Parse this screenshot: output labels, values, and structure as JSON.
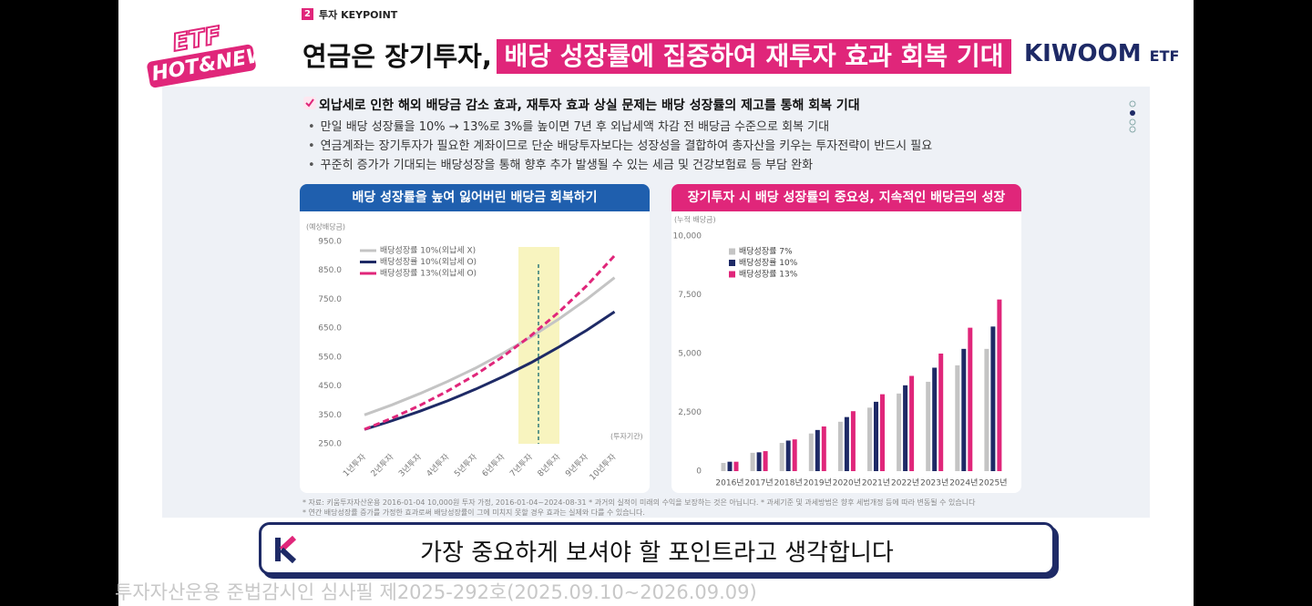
{
  "header": {
    "section_number": "2",
    "section_label": "투자 KEYPOINT",
    "badge_top": "ETF",
    "badge_bottom": "HOT&NEW",
    "title_plain": "연금은 장기투자,",
    "title_highlight": "배당 성장률에 집중하여 재투자 효과 회복 기대",
    "brand": "KIWOOM",
    "brand_suffix": "ETF"
  },
  "summary": {
    "headline": "외납세로 인한 해외 배당금 감소 효과, 재투자 효과 상실 문제는 배당 성장률의 제고를 통해 회복 기대",
    "bullets": [
      "만일 배당 성장률을 10% → 13%로 3%를 높이면 7년 후 외납세액 차감 전 배당금 수준으로 회복 기대",
      "연금계좌는 장기투자가 필요한 계좌이므로 단순 배당투자보다는 성장성을 결합하여 총자산을 키우는 투자전략이 반드시 필요",
      "꾸준히 증가가 기대되는 배당성장을 통해 향후 추가 발생될 수 있는 세금 및 건강보험료 등 부담 완화"
    ]
  },
  "chart_data": [
    {
      "type": "line",
      "title": "배당 성장률을 높여 잃어버린 배당금 회복하기",
      "ylabel": "(예상배당금)",
      "xlabel": "(투자기간)",
      "categories": [
        "1년투자",
        "2년투자",
        "3년투자",
        "4년투자",
        "5년투자",
        "6년투자",
        "7년투자",
        "8년투자",
        "9년투자",
        "10년투자"
      ],
      "series": [
        {
          "name": "배당성장률 10%(외납세 X)",
          "color": "#c4c4c4",
          "line_style": "solid",
          "values": [
            350,
            385,
            424,
            466,
            512,
            564,
            620,
            682,
            750,
            825
          ]
        },
        {
          "name": "배당성장률 10%(외납세 O)",
          "color": "#1e2a66",
          "line_style": "solid",
          "values": [
            300,
            330,
            363,
            399,
            439,
            483,
            531,
            585,
            643,
            707
          ]
        },
        {
          "name": "배당성장률 13%(외납세 O)",
          "color": "#e0267a",
          "line_style": "dashed",
          "values": [
            300,
            339,
            383,
            433,
            489,
            553,
            625,
            706,
            797,
            901
          ]
        }
      ],
      "ylim": [
        250,
        950
      ],
      "yticks": [
        {
          "value": 250,
          "label": "250.0"
        },
        {
          "value": 350,
          "label": "350.0"
        },
        {
          "value": 450,
          "label": "450.0"
        },
        {
          "value": 550,
          "label": "550.0"
        },
        {
          "value": 650,
          "label": "650.0"
        },
        {
          "value": 750,
          "label": "750.0"
        },
        {
          "value": 850,
          "label": "850.0"
        },
        {
          "value": 950,
          "label": "950.0"
        }
      ],
      "grid": false
    },
    {
      "type": "bar",
      "title": "장기투자 시 배당 성장률의 중요성, 지속적인 배당금의 성장",
      "ylabel": "(누적 배당금)",
      "categories": [
        "2016년",
        "2017년",
        "2018년",
        "2019년",
        "2020년",
        "2021년",
        "2022년",
        "2023년",
        "2024년",
        "2025년"
      ],
      "series": [
        {
          "name": "배당성장률 7%",
          "color": "#c4c4c4",
          "values": [
            350,
            780,
            1200,
            1600,
            2100,
            2700,
            3300,
            3800,
            4500,
            5200
          ]
        },
        {
          "name": "배당성장률 10%",
          "color": "#1e2a66",
          "values": [
            400,
            800,
            1300,
            1750,
            2300,
            2950,
            3650,
            4400,
            5200,
            6150
          ]
        },
        {
          "name": "배당성장률 13%",
          "color": "#e0267a",
          "values": [
            400,
            850,
            1350,
            1900,
            2550,
            3270,
            4050,
            5000,
            6100,
            7300
          ]
        }
      ],
      "ylim": [
        0,
        10000
      ],
      "yticks": [
        0,
        {
          "value": 2500,
          "label": "2,500"
        },
        {
          "value": 5000,
          "label": "5,000"
        },
        {
          "value": 7500,
          "label": "7,500"
        },
        {
          "value": 10000,
          "label": "10,000"
        }
      ],
      "grid": false
    }
  ],
  "footnotes": [
    "* 자료: 키움투자자산운용 2016-01-04 10,000원 투자 가정, 2016-01-04~2024-08-31 * 과거의 실적이 미래의 수익을 보장하는 것은 아닙니다. * 과세기준 및 과세방법은 향후 세법개정 등에 따라 변동될 수 있습니다",
    "* 연간 배당성장률 증가를 가정한 효과로써 배당성장률이 그에 미치지 못할 경우 효과는 실제와 다를 수 있습니다."
  ],
  "caption": "가장 중요하게 보셔야 할 포인트라고 생각합니다",
  "disclaimer": "투자자산운용 준법감시인 심사필 제2025-292호(2025.09.10~2026.09.09)"
}
